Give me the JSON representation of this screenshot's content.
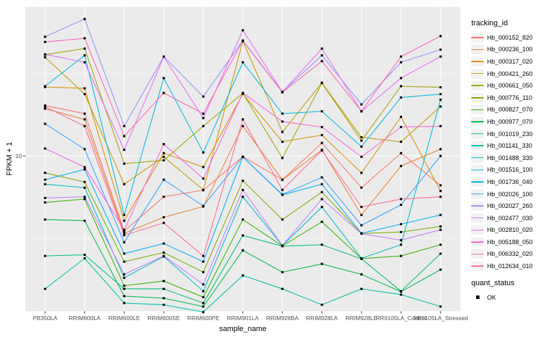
{
  "window": {
    "background": "#FFFFFF"
  },
  "chart_data": {
    "type": "line",
    "title": "",
    "xlabel": "sample_name",
    "ylabel": "FPKM + 1",
    "y_scale": "log10",
    "ylim_approx": [
      1.1,
      80
    ],
    "grid": true,
    "panel_bg": "#EBEBEB",
    "grid_color": "#FFFFFF",
    "tick_color": "#333333",
    "tick_label_color": "#4D4D4D",
    "point_color": "#000000",
    "point_shape": "square",
    "y_axis_ticks": [
      {
        "value": 10,
        "label": "10"
      }
    ],
    "x_categories": [
      "PB350LA",
      "RRIM600LA",
      "RRIM600LE",
      "RRIM600SE",
      "RRIM600PE",
      "RRIM901LA",
      "RRIM928BA",
      "RRIM928LA",
      "RRIM928LE",
      "RRII105LA_Control",
      "RRII105LA_Stressed"
    ],
    "legend": {
      "title": "tracking_id",
      "quant_title": "quant_status",
      "quant_items": [
        "OK"
      ]
    },
    "series": [
      {
        "name": "Hb_000152_820",
        "color": "#F8766D",
        "values": [
          20.3,
          18.1,
          3.48,
          5.64,
          6.19,
          9.9,
          7.17,
          12.0,
          6.41,
          10.4,
          6.62
        ]
      },
      {
        "name": "Hb_000236_100",
        "color": "#EA8331",
        "values": [
          19.4,
          16.7,
          3.38,
          4.23,
          4.92,
          15.2,
          7.15,
          10.9,
          4.37,
          8.68,
          11.0
        ]
      },
      {
        "name": "Hb_000317_020",
        "color": "#D89000",
        "values": [
          26.3,
          25.8,
          4.03,
          10.4,
          8.55,
          23.9,
          12.2,
          13.4,
          7.89,
          17.3,
          6.12
        ]
      },
      {
        "name": "Hb_000421_260",
        "color": "#C09B00",
        "values": [
          39.9,
          23.8,
          6.73,
          9.88,
          6.21,
          50.1,
          14.0,
          27.9,
          13.0,
          12.2,
          20.0
        ]
      },
      {
        "name": "Hb_000661_050",
        "color": "#A3A500",
        "values": [
          41.4,
          45.1,
          8.97,
          9.41,
          15.2,
          24.1,
          9.72,
          27.8,
          12.4,
          26.6,
          26.2
        ]
      },
      {
        "name": "Hb_000776_110",
        "color": "#7CAE00",
        "values": [
          7.89,
          6.94,
          2.27,
          2.58,
          1.96,
          7.06,
          4.1,
          6.02,
          3.37,
          3.44,
          3.72
        ]
      },
      {
        "name": "Hb_000827_070",
        "color": "#39B600",
        "values": [
          5.21,
          5.46,
          1.62,
          1.73,
          1.38,
          4.1,
          2.83,
          3.97,
          2.37,
          2.46,
          2.88
        ]
      },
      {
        "name": "Hb_000977_070",
        "color": "#00BB4E",
        "values": [
          4.1,
          4.03,
          1.4,
          1.36,
          1.21,
          2.66,
          1.96,
          2.2,
          1.9,
          1.49,
          2.03
        ]
      },
      {
        "name": "Hb_001019_230",
        "color": "#00BF7D",
        "values": [
          2.46,
          2.5,
          1.55,
          1.55,
          1.27,
          3.28,
          2.82,
          2.88,
          2.36,
          1.5,
          2.54
        ]
      },
      {
        "name": "Hb_001141_330",
        "color": "#00C1A3",
        "values": [
          1.55,
          2.38,
          1.27,
          1.24,
          1.12,
          1.87,
          1.55,
          1.24,
          1.55,
          1.43,
          1.21
        ]
      },
      {
        "name": "Hb_001488_330",
        "color": "#00BFC4",
        "values": [
          6.73,
          6.41,
          1.81,
          2.44,
          1.5,
          5.64,
          2.84,
          4.89,
          2.38,
          2.88,
          22.0
        ]
      },
      {
        "name": "Hb_001516_100",
        "color": "#00BAE0",
        "values": [
          26.6,
          41.0,
          4.37,
          29.8,
          10.5,
          37.2,
          18.1,
          18.7,
          11.4,
          22.7,
          23.8
        ]
      },
      {
        "name": "Hb_001736_040",
        "color": "#00B0F6",
        "values": [
          7.17,
          8.28,
          2.54,
          2.93,
          2.27,
          9.85,
          5.79,
          6.73,
          3.38,
          3.84,
          4.37
        ]
      },
      {
        "name": "Hb_002026_100",
        "color": "#35A2FF",
        "values": [
          15.7,
          11.0,
          2.98,
          7.17,
          4.96,
          9.88,
          5.83,
          7.41,
          3.78,
          5.04,
          10.0
        ]
      },
      {
        "name": "Hb_002027_260",
        "color": "#9590FF",
        "values": [
          53.2,
          68.3,
          15.2,
          40.3,
          23.0,
          50.5,
          24.6,
          41.0,
          20.6,
          37.2,
          44.4
        ]
      },
      {
        "name": "Hb_002477_030",
        "color": "#C77CFF",
        "values": [
          5.55,
          5.64,
          1.9,
          2.46,
          1.65,
          6.21,
          2.85,
          5.46,
          3.36,
          3.07,
          3.55
        ]
      },
      {
        "name": "Hb_002810_020",
        "color": "#E76BF3",
        "values": [
          41.6,
          37.2,
          10.9,
          40.2,
          17.0,
          58.3,
          24.5,
          45.1,
          18.7,
          29.8,
          40.3
        ]
      },
      {
        "name": "Hb_005188_050",
        "color": "#FA62DB",
        "values": [
          11.1,
          8.55,
          3.55,
          11.8,
          7.28,
          24.2,
          16.2,
          15.0,
          9.88,
          15.0,
          15.2
        ]
      },
      {
        "name": "Hb_006332_020",
        "color": "#FF62BC",
        "values": [
          49.5,
          52.1,
          13.2,
          24.2,
          18.1,
          50.3,
          24.4,
          37.8,
          18.7,
          40.3,
          53.7
        ]
      },
      {
        "name": "Hb_012634_010",
        "color": "#FF6A98",
        "values": [
          19.95,
          15.2,
          3.29,
          3.91,
          2.46,
          16.7,
          6.21,
          10.8,
          4.89,
          5.46,
          5.64
        ]
      }
    ]
  }
}
